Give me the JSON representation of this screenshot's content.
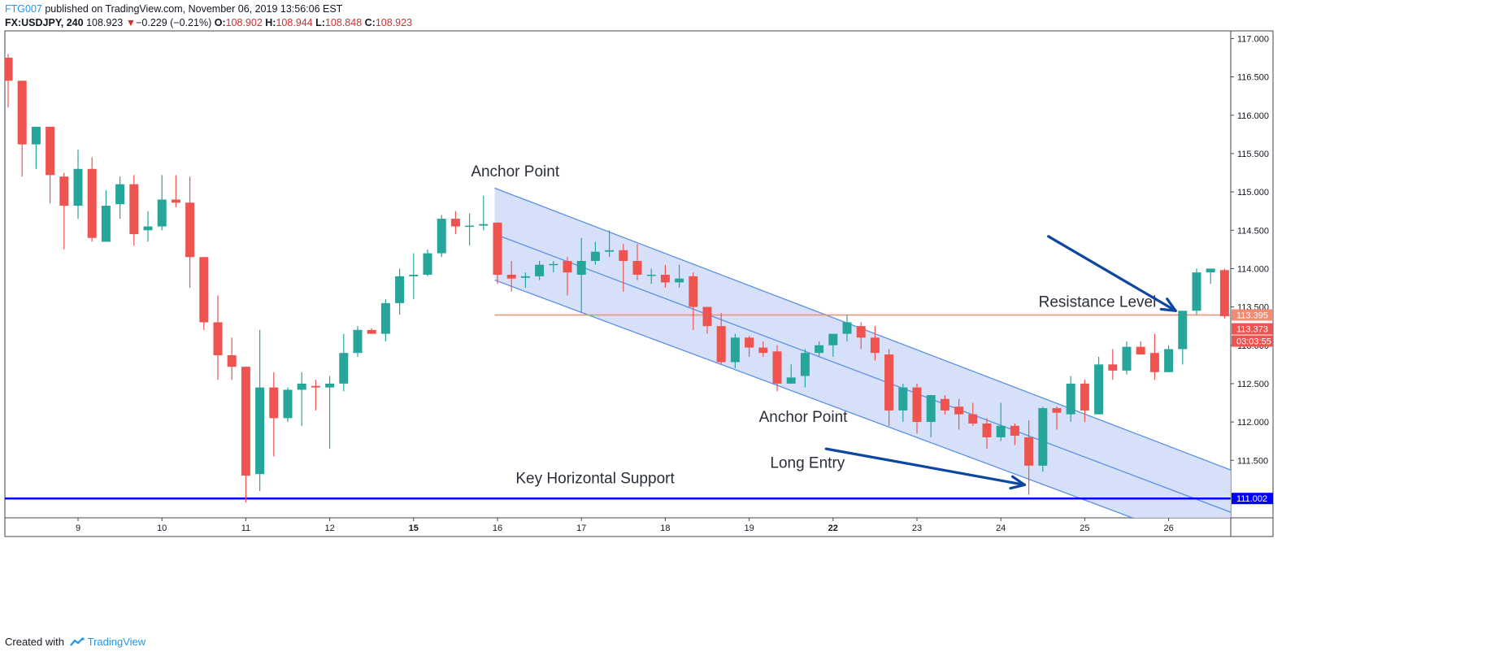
{
  "header": {
    "publisher": "FTG007",
    "published_text": "published on TradingView.com, November 06, 2019 13:56:06 EST",
    "symbol": "FX:USDJPY, 240",
    "last_price": "108.923",
    "change_arrow": "▼",
    "change": "−0.229 (−0.21%)",
    "open_label": "O:",
    "open": "108.902",
    "high_label": "H:",
    "high": "108.944",
    "low_label": "L:",
    "low": "108.848",
    "close_label": "C:",
    "close": "108.923"
  },
  "footer": {
    "created_with": "Created with",
    "brand": "TradingView"
  },
  "colors": {
    "up": "#26a69a",
    "down": "#ef5350",
    "channel_fill": "#cfdcf8",
    "channel_line": "#5b8fe3",
    "support": "#0000ff",
    "resistance": "#f28b70",
    "arrow": "#0d47a1"
  },
  "chart_data": {
    "type": "candlestick",
    "title": "",
    "ylim": [
      110.75,
      117.1
    ],
    "y_ticks": [
      "111.500",
      "112.000",
      "112.500",
      "113.000",
      "113.500",
      "114.000",
      "114.500",
      "115.000",
      "115.500",
      "116.000",
      "116.500",
      "117.000"
    ],
    "x_ticks": [
      {
        "label": "9",
        "idx": 5
      },
      {
        "label": "10",
        "idx": 11
      },
      {
        "label": "11",
        "idx": 17
      },
      {
        "label": "12",
        "idx": 23
      },
      {
        "label": "15",
        "idx": 29
      },
      {
        "label": "16",
        "idx": 35
      },
      {
        "label": "17",
        "idx": 41
      },
      {
        "label": "18",
        "idx": 47
      },
      {
        "label": "19",
        "idx": 53
      },
      {
        "label": "22",
        "idx": 59
      },
      {
        "label": "23",
        "idx": 65
      },
      {
        "label": "24",
        "idx": 71
      },
      {
        "label": "25",
        "idx": 77
      },
      {
        "label": "26",
        "idx": 83
      }
    ],
    "ohlc": [
      [
        116.75,
        116.8,
        116.1,
        116.45
      ],
      [
        116.45,
        116.45,
        115.2,
        115.62
      ],
      [
        115.62,
        115.85,
        115.3,
        115.85
      ],
      [
        115.85,
        115.85,
        114.85,
        115.22
      ],
      [
        115.2,
        115.25,
        114.25,
        114.82
      ],
      [
        114.82,
        115.55,
        114.65,
        115.3
      ],
      [
        115.3,
        115.45,
        114.35,
        114.4
      ],
      [
        114.35,
        115.02,
        114.35,
        114.82
      ],
      [
        114.84,
        115.2,
        114.65,
        115.1
      ],
      [
        115.1,
        115.22,
        114.3,
        114.45
      ],
      [
        114.5,
        114.75,
        114.35,
        114.55
      ],
      [
        114.55,
        115.22,
        114.5,
        114.9
      ],
      [
        114.9,
        115.22,
        114.8,
        114.86
      ],
      [
        114.86,
        115.2,
        113.75,
        114.15
      ],
      [
        114.15,
        114.15,
        113.2,
        113.3
      ],
      [
        113.3,
        113.65,
        112.55,
        112.87
      ],
      [
        112.87,
        113.1,
        112.55,
        112.72
      ],
      [
        112.72,
        112.72,
        110.95,
        111.3
      ],
      [
        111.32,
        113.2,
        111.1,
        112.45
      ],
      [
        112.45,
        112.65,
        111.55,
        112.05
      ],
      [
        112.05,
        112.45,
        112.0,
        112.42
      ],
      [
        112.42,
        112.65,
        111.95,
        112.5
      ],
      [
        112.47,
        112.55,
        112.15,
        112.45
      ],
      [
        112.45,
        112.6,
        111.65,
        112.5
      ],
      [
        112.5,
        113.15,
        112.4,
        112.9
      ],
      [
        112.9,
        113.25,
        112.85,
        113.2
      ],
      [
        113.2,
        113.22,
        113.15,
        113.15
      ],
      [
        113.15,
        113.6,
        113.05,
        113.55
      ],
      [
        113.55,
        114.0,
        113.4,
        113.9
      ],
      [
        113.9,
        114.2,
        113.6,
        113.92
      ],
      [
        113.92,
        114.25,
        113.9,
        114.2
      ],
      [
        114.2,
        114.7,
        114.15,
        114.65
      ],
      [
        114.65,
        114.75,
        114.45,
        114.55
      ],
      [
        114.55,
        114.72,
        114.3,
        114.56
      ],
      [
        114.56,
        114.95,
        114.5,
        114.58
      ],
      [
        114.6,
        114.6,
        113.8,
        113.92
      ],
      [
        113.92,
        114.1,
        113.7,
        113.87
      ],
      [
        113.88,
        113.95,
        113.75,
        113.9
      ],
      [
        113.9,
        114.1,
        113.85,
        114.05
      ],
      [
        114.05,
        114.1,
        113.95,
        114.06
      ],
      [
        114.1,
        114.15,
        113.65,
        113.95
      ],
      [
        113.92,
        114.4,
        113.42,
        114.1
      ],
      [
        114.1,
        114.35,
        114.05,
        114.22
      ],
      [
        114.22,
        114.5,
        114.15,
        114.24
      ],
      [
        114.24,
        114.32,
        113.7,
        114.1
      ],
      [
        114.1,
        114.32,
        113.85,
        113.92
      ],
      [
        113.92,
        114.0,
        113.8,
        113.92
      ],
      [
        113.92,
        114.05,
        113.75,
        113.82
      ],
      [
        113.82,
        114.05,
        113.75,
        113.87
      ],
      [
        113.9,
        113.95,
        113.2,
        113.5
      ],
      [
        113.5,
        113.5,
        113.15,
        113.25
      ],
      [
        113.25,
        113.42,
        112.75,
        112.78
      ],
      [
        112.78,
        113.15,
        112.7,
        113.1
      ],
      [
        113.1,
        113.12,
        112.85,
        112.97
      ],
      [
        112.97,
        113.05,
        112.85,
        112.9
      ],
      [
        112.92,
        113.0,
        112.4,
        112.5
      ],
      [
        112.5,
        112.75,
        112.5,
        112.58
      ],
      [
        112.6,
        112.95,
        112.45,
        112.9
      ],
      [
        112.9,
        113.05,
        112.85,
        113.0
      ],
      [
        113.0,
        113.1,
        112.85,
        113.15
      ],
      [
        113.15,
        113.4,
        113.05,
        113.3
      ],
      [
        113.25,
        113.3,
        112.95,
        113.1
      ],
      [
        113.1,
        113.25,
        112.8,
        112.9
      ],
      [
        112.88,
        112.95,
        111.95,
        112.15
      ],
      [
        112.15,
        112.5,
        112.0,
        112.45
      ],
      [
        112.45,
        112.5,
        111.85,
        112.0
      ],
      [
        112.0,
        112.35,
        111.8,
        112.35
      ],
      [
        112.3,
        112.35,
        112.1,
        112.15
      ],
      [
        112.2,
        112.3,
        111.9,
        112.1
      ],
      [
        112.1,
        112.25,
        111.95,
        111.98
      ],
      [
        111.98,
        112.05,
        111.65,
        111.8
      ],
      [
        111.8,
        112.25,
        111.75,
        111.95
      ],
      [
        111.95,
        111.98,
        111.7,
        111.82
      ],
      [
        111.8,
        112.02,
        111.05,
        111.43
      ],
      [
        111.43,
        112.2,
        111.35,
        112.18
      ],
      [
        112.18,
        112.2,
        111.9,
        112.12
      ],
      [
        112.1,
        112.6,
        112.0,
        112.5
      ],
      [
        112.5,
        112.55,
        112.0,
        112.15
      ],
      [
        112.1,
        112.85,
        112.1,
        112.75
      ],
      [
        112.75,
        112.95,
        112.55,
        112.67
      ],
      [
        112.67,
        113.05,
        112.62,
        112.98
      ],
      [
        112.98,
        113.05,
        112.9,
        112.88
      ],
      [
        112.9,
        113.15,
        112.55,
        112.65
      ],
      [
        112.65,
        113.0,
        112.65,
        112.95
      ],
      [
        112.95,
        113.45,
        112.75,
        113.45
      ],
      [
        113.45,
        114.0,
        113.4,
        113.95
      ],
      [
        113.95,
        114.0,
        113.8,
        114.0
      ],
      [
        113.98,
        114.0,
        113.35,
        113.38
      ]
    ],
    "support_level": 111.002,
    "resistance_level": 113.395,
    "price_tags": [
      {
        "text": "113.395",
        "value": 113.395,
        "color": "#f28b70",
        "offset": 0
      },
      {
        "text": "113.373",
        "value": 113.373,
        "color": "#ef5350",
        "offset": 15
      },
      {
        "text": "03:03:55",
        "value": 113.373,
        "color": "#ef5350",
        "offset": 30
      },
      {
        "text": "111.002",
        "value": 111.002,
        "color": "#0000ff",
        "offset": 0
      }
    ],
    "channel": {
      "start_idx": 34.8,
      "end_idx": 88.5,
      "top": [
        115.05,
        111.3
      ],
      "mid": [
        114.45,
        110.75
      ],
      "bottom": [
        113.85,
        110.2
      ]
    },
    "annotations": [
      {
        "text": "Anchor Point",
        "idx": 33.1,
        "y": 115.2
      },
      {
        "text": "Anchor Point",
        "idx": 53.7,
        "y": 112.0
      },
      {
        "text": "Resistance Level",
        "idx": 73.7,
        "y": 113.5
      },
      {
        "text": "Long Entry",
        "idx": 54.5,
        "y": 111.4
      },
      {
        "text": "Key Horizontal Support",
        "idx": 36.3,
        "y": 111.2
      }
    ],
    "arrows": [
      {
        "from": [
          74.4,
          114.42
        ],
        "to": [
          83.5,
          113.45
        ]
      },
      {
        "from": [
          58.5,
          111.65
        ],
        "to": [
          72.7,
          111.18
        ]
      }
    ]
  }
}
